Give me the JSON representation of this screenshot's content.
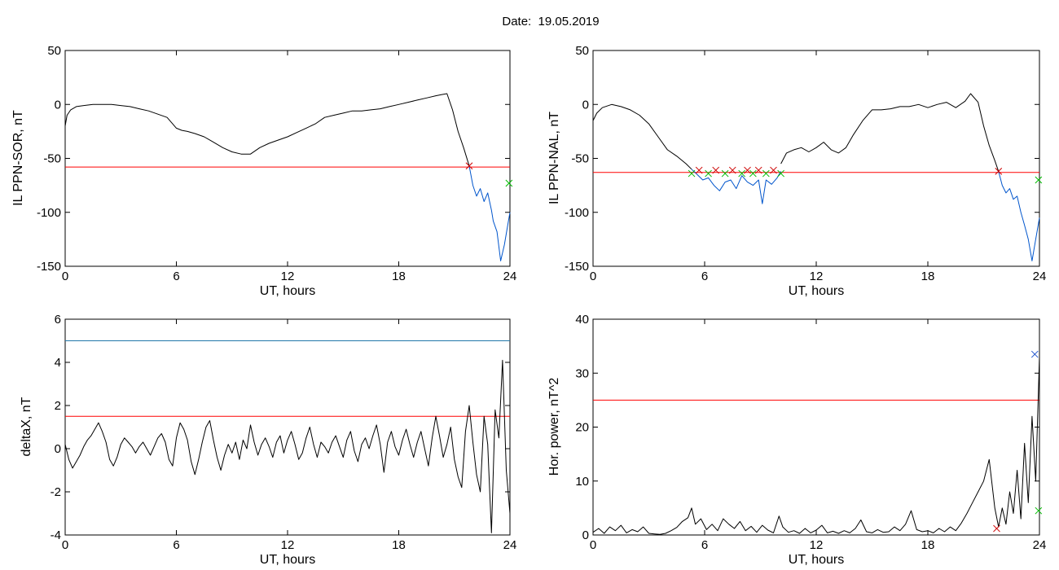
{
  "page": {
    "title": "Date:  19.05.2019"
  },
  "chart_data": [
    {
      "id": "sor",
      "type": "line",
      "xlabel": "UT, hours",
      "ylabel": "IL PPN-SOR, nT",
      "xlim": [
        0,
        24
      ],
      "ylim": [
        -150,
        50
      ],
      "xticks": [
        0,
        6,
        12,
        18,
        24
      ],
      "yticks": [
        -150,
        -100,
        -50,
        0,
        50
      ],
      "threshold_lines": [
        {
          "y": -58,
          "color": "#ff0000"
        }
      ],
      "series": [
        {
          "color": "#000000",
          "x": [
            0,
            0.1,
            0.3,
            0.6,
            1,
            1.5,
            2,
            2.5,
            3,
            3.5,
            4,
            4.5,
            5,
            5.5,
            5.8,
            6,
            6.3,
            6.6,
            7,
            7.5,
            8,
            8.5,
            9,
            9.5,
            10,
            10.5,
            11,
            11.5,
            12,
            12.5,
            13,
            13.5,
            14,
            14.5,
            15,
            15.5,
            16,
            16.5,
            17,
            17.5,
            18,
            18.5,
            19,
            19.5,
            20,
            20.3,
            20.6,
            20.9,
            21.2,
            21.5,
            21.8
          ],
          "y": [
            -20,
            -10,
            -5,
            -2,
            -1,
            0,
            0,
            0,
            -1,
            -2,
            -4,
            -6,
            -9,
            -12,
            -18,
            -22,
            -24,
            -25,
            -27,
            -30,
            -35,
            -40,
            -44,
            -46,
            -46,
            -40,
            -36,
            -33,
            -30,
            -26,
            -22,
            -18,
            -12,
            -10,
            -8,
            -6,
            -6,
            -5,
            -4,
            -2,
            0,
            2,
            4,
            6,
            8,
            9,
            10,
            -5,
            -25,
            -40,
            -57
          ]
        },
        {
          "color": "#0055cc",
          "x": [
            21.8,
            22,
            22.2,
            22.4,
            22.6,
            22.8,
            23,
            23.1,
            23.3,
            23.5,
            23.7,
            23.9,
            24
          ],
          "y": [
            -57,
            -75,
            -85,
            -78,
            -90,
            -82,
            -98,
            -108,
            -118,
            -145,
            -130,
            -110,
            -100
          ]
        }
      ],
      "markers": [
        {
          "x": 21.8,
          "y": -57,
          "color": "#cc0000",
          "symbol": "x"
        },
        {
          "x": 23.95,
          "y": -73,
          "color": "#00bb00",
          "symbol": "x"
        }
      ]
    },
    {
      "id": "nal",
      "type": "line",
      "xlabel": "UT, hours",
      "ylabel": "IL PPN-NAL, nT",
      "xlim": [
        0,
        24
      ],
      "ylim": [
        -150,
        50
      ],
      "xticks": [
        0,
        6,
        12,
        18,
        24
      ],
      "yticks": [
        -150,
        -100,
        -50,
        0,
        50
      ],
      "threshold_lines": [
        {
          "y": -63,
          "color": "#ff0000"
        }
      ],
      "series": [
        {
          "color": "#000000",
          "x": [
            0,
            0.2,
            0.5,
            1,
            1.5,
            2,
            2.5,
            3,
            3.5,
            4,
            4.5,
            5,
            5.3
          ],
          "y": [
            -15,
            -8,
            -3,
            0,
            -2,
            -5,
            -10,
            -18,
            -30,
            -42,
            -48,
            -55,
            -60
          ]
        },
        {
          "color": "#0055cc",
          "x": [
            5.3,
            5.6,
            5.9,
            6.2,
            6.5,
            6.8,
            7.1,
            7.4,
            7.7,
            8,
            8.3,
            8.6,
            8.9,
            9.1,
            9.3,
            9.6,
            9.9,
            10.1
          ],
          "y": [
            -60,
            -65,
            -70,
            -68,
            -75,
            -80,
            -72,
            -70,
            -78,
            -66,
            -72,
            -75,
            -70,
            -92,
            -70,
            -74,
            -68,
            -62
          ]
        },
        {
          "color": "#000000",
          "x": [
            10.1,
            10.4,
            10.8,
            11.2,
            11.6,
            12,
            12.4,
            12.8,
            13.2,
            13.6,
            14,
            14.5,
            15,
            15.5,
            16,
            16.5,
            17,
            17.5,
            18,
            18.5,
            19,
            19.5,
            20,
            20.3,
            20.7,
            21,
            21.3,
            21.6,
            21.8
          ],
          "y": [
            -55,
            -45,
            -42,
            -40,
            -44,
            -40,
            -35,
            -42,
            -45,
            -40,
            -28,
            -15,
            -5,
            -5,
            -4,
            -2,
            -2,
            0,
            -3,
            0,
            2,
            -3,
            3,
            10,
            2,
            -20,
            -38,
            -52,
            -62
          ]
        },
        {
          "color": "#0055cc",
          "x": [
            21.8,
            22,
            22.2,
            22.4,
            22.6,
            22.8,
            23,
            23.2,
            23.4,
            23.6,
            23.8,
            24
          ],
          "y": [
            -62,
            -75,
            -82,
            -78,
            -88,
            -85,
            -100,
            -112,
            -125,
            -145,
            -125,
            -105
          ]
        }
      ],
      "markers": [
        {
          "x": 5.3,
          "y": -64,
          "color": "#00bb00",
          "symbol": "x"
        },
        {
          "x": 5.7,
          "y": -61,
          "color": "#cc0000",
          "symbol": "x"
        },
        {
          "x": 6.2,
          "y": -64,
          "color": "#00bb00",
          "symbol": "x"
        },
        {
          "x": 6.6,
          "y": -61,
          "color": "#cc0000",
          "symbol": "x"
        },
        {
          "x": 7.1,
          "y": -64,
          "color": "#00bb00",
          "symbol": "x"
        },
        {
          "x": 7.5,
          "y": -61,
          "color": "#cc0000",
          "symbol": "x"
        },
        {
          "x": 8,
          "y": -64,
          "color": "#00bb00",
          "symbol": "x"
        },
        {
          "x": 8.3,
          "y": -61,
          "color": "#cc0000",
          "symbol": "x"
        },
        {
          "x": 8.6,
          "y": -64,
          "color": "#00bb00",
          "symbol": "x"
        },
        {
          "x": 8.9,
          "y": -61,
          "color": "#cc0000",
          "symbol": "x"
        },
        {
          "x": 9.3,
          "y": -64,
          "color": "#00bb00",
          "symbol": "x"
        },
        {
          "x": 9.7,
          "y": -61,
          "color": "#cc0000",
          "symbol": "x"
        },
        {
          "x": 10.1,
          "y": -64,
          "color": "#00bb00",
          "symbol": "x"
        },
        {
          "x": 21.8,
          "y": -62,
          "color": "#cc0000",
          "symbol": "x"
        },
        {
          "x": 23.95,
          "y": -70,
          "color": "#00bb00",
          "symbol": "x"
        }
      ]
    },
    {
      "id": "deltax",
      "type": "line",
      "xlabel": "UT, hours",
      "ylabel": "deltaX, nT",
      "xlim": [
        0,
        24
      ],
      "ylim": [
        -4,
        6
      ],
      "xticks": [
        0,
        6,
        12,
        18,
        24
      ],
      "yticks": [
        -4,
        -2,
        0,
        2,
        4,
        6
      ],
      "threshold_lines": [
        {
          "y": 5,
          "color": "#2277aa"
        },
        {
          "y": 1.5,
          "color": "#ff0000"
        }
      ],
      "series": [
        {
          "color": "#000000",
          "x": [
            0,
            0.2,
            0.4,
            0.6,
            0.8,
            1,
            1.2,
            1.4,
            1.6,
            1.8,
            2,
            2.2,
            2.4,
            2.6,
            2.8,
            3,
            3.2,
            3.4,
            3.6,
            3.8,
            4,
            4.2,
            4.4,
            4.6,
            4.8,
            5,
            5.2,
            5.4,
            5.6,
            5.8,
            6,
            6.2,
            6.4,
            6.6,
            6.8,
            7,
            7.2,
            7.4,
            7.6,
            7.8,
            8,
            8.2,
            8.4,
            8.6,
            8.8,
            9,
            9.2,
            9.4,
            9.6,
            9.8,
            10,
            10.2,
            10.4,
            10.6,
            10.8,
            11,
            11.2,
            11.4,
            11.6,
            11.8,
            12,
            12.2,
            12.4,
            12.6,
            12.8,
            13,
            13.2,
            13.4,
            13.6,
            13.8,
            14,
            14.2,
            14.4,
            14.6,
            14.8,
            15,
            15.2,
            15.4,
            15.6,
            15.8,
            16,
            16.2,
            16.4,
            16.6,
            16.8,
            17,
            17.2,
            17.4,
            17.6,
            17.8,
            18,
            18.2,
            18.4,
            18.6,
            18.8,
            19,
            19.2,
            19.4,
            19.6,
            19.8,
            20,
            20.2,
            20.4,
            20.6,
            20.8,
            21,
            21.2,
            21.4,
            21.6,
            21.8,
            22,
            22.2,
            22.4,
            22.6,
            22.8,
            23,
            23.2,
            23.4,
            23.6,
            23.8,
            24
          ],
          "y": [
            0.2,
            -0.5,
            -0.9,
            -0.6,
            -0.3,
            0.1,
            0.4,
            0.6,
            0.9,
            1.2,
            0.8,
            0.3,
            -0.5,
            -0.8,
            -0.4,
            0.2,
            0.5,
            0.3,
            0.1,
            -0.2,
            0.1,
            0.3,
            0.0,
            -0.3,
            0.1,
            0.5,
            0.7,
            0.3,
            -0.5,
            -0.8,
            0.5,
            1.2,
            0.9,
            0.4,
            -0.6,
            -1.2,
            -0.5,
            0.3,
            1.0,
            1.3,
            0.4,
            -0.4,
            -1.0,
            -0.3,
            0.2,
            -0.2,
            0.3,
            -0.5,
            0.4,
            0.0,
            1.1,
            0.3,
            -0.3,
            0.2,
            0.5,
            0.1,
            -0.4,
            0.3,
            0.6,
            -0.2,
            0.4,
            0.8,
            0.2,
            -0.5,
            -0.2,
            0.5,
            1.0,
            0.2,
            -0.4,
            0.3,
            0.1,
            -0.2,
            0.3,
            0.6,
            0.1,
            -0.4,
            0.4,
            0.8,
            -0.1,
            -0.6,
            0.2,
            0.5,
            0.0,
            0.6,
            1.1,
            0.2,
            -1.1,
            0.3,
            0.8,
            0.1,
            -0.3,
            0.4,
            0.9,
            0.2,
            -0.4,
            0.3,
            0.8,
            0.0,
            -0.8,
            0.5,
            1.5,
            0.6,
            -0.4,
            0.2,
            1.0,
            -0.5,
            -1.3,
            -1.8,
            0.8,
            2.0,
            0.3,
            -1.2,
            -2.0,
            1.5,
            0.2,
            -3.9,
            1.8,
            0.5,
            4.1,
            -1.0,
            -3.0
          ]
        }
      ],
      "markers": []
    },
    {
      "id": "power",
      "type": "line",
      "xlabel": "UT, hours",
      "ylabel": "Hor. power, nT^2",
      "xlim": [
        0,
        24
      ],
      "ylim": [
        0,
        40
      ],
      "xticks": [
        0,
        6,
        12,
        18,
        24
      ],
      "yticks": [
        0,
        10,
        20,
        30,
        40
      ],
      "threshold_lines": [
        {
          "y": 25,
          "color": "#ff0000"
        }
      ],
      "series": [
        {
          "color": "#000000",
          "x": [
            0,
            0.3,
            0.6,
            0.9,
            1.2,
            1.5,
            1.8,
            2.1,
            2.4,
            2.7,
            3,
            3.3,
            3.6,
            3.9,
            4.2,
            4.5,
            4.8,
            5.1,
            5.3,
            5.5,
            5.8,
            6.1,
            6.4,
            6.7,
            7,
            7.3,
            7.6,
            7.9,
            8.2,
            8.5,
            8.8,
            9.1,
            9.4,
            9.7,
            10,
            10.2,
            10.5,
            10.8,
            11.1,
            11.4,
            11.7,
            12,
            12.3,
            12.6,
            12.9,
            13.2,
            13.5,
            13.8,
            14.1,
            14.4,
            14.7,
            15,
            15.3,
            15.6,
            15.9,
            16.2,
            16.5,
            16.8,
            17.1,
            17.4,
            17.7,
            18,
            18.3,
            18.6,
            18.9,
            19.2,
            19.5,
            19.8,
            20.1,
            20.4,
            20.7,
            21,
            21.3,
            21.6,
            21.8,
            22,
            22.2,
            22.4,
            22.6,
            22.8,
            23,
            23.2,
            23.4,
            23.6,
            23.8,
            24
          ],
          "y": [
            0.5,
            1.2,
            0.3,
            1.5,
            0.8,
            1.8,
            0.4,
            1.0,
            0.6,
            1.5,
            0.3,
            0.2,
            0.1,
            0.3,
            0.8,
            1.4,
            2.5,
            3.2,
            5.0,
            2.0,
            3.0,
            1.0,
            2.0,
            0.8,
            3.0,
            2.0,
            1.2,
            2.5,
            0.8,
            1.6,
            0.5,
            1.8,
            0.9,
            0.4,
            3.5,
            1.5,
            0.5,
            0.8,
            0.3,
            1.2,
            0.4,
            0.9,
            1.8,
            0.4,
            0.7,
            0.3,
            0.8,
            0.4,
            1.2,
            2.8,
            0.6,
            0.4,
            1.0,
            0.5,
            0.6,
            1.5,
            0.8,
            2.0,
            4.5,
            1.0,
            0.6,
            0.8,
            0.4,
            1.2,
            0.6,
            1.5,
            0.8,
            2.2,
            4.0,
            6.0,
            8.0,
            10.0,
            14.0,
            5.0,
            1.5,
            5.0,
            2.0,
            8.0,
            4.0,
            12.0,
            3.0,
            17.0,
            6.0,
            22.0,
            10.0,
            33.0
          ]
        }
      ],
      "markers": [
        {
          "x": 21.7,
          "y": 1.2,
          "color": "#cc0000",
          "symbol": "x"
        },
        {
          "x": 23.75,
          "y": 33.5,
          "color": "#2255cc",
          "symbol": "x"
        },
        {
          "x": 23.95,
          "y": 4.5,
          "color": "#00bb00",
          "symbol": "x"
        }
      ]
    }
  ]
}
